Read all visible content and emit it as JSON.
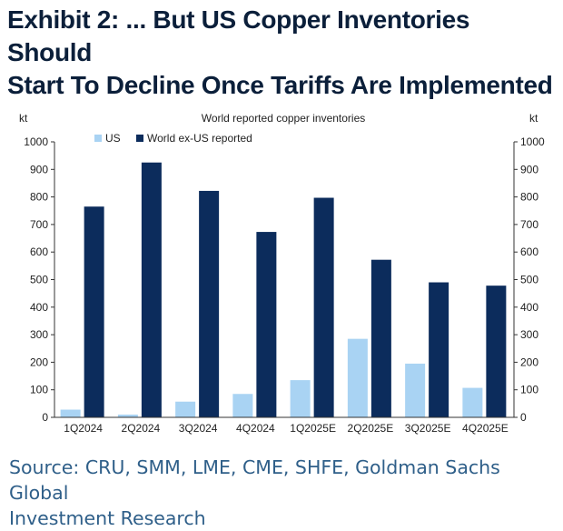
{
  "header": {
    "title_line1": "Exhibit 2: ... But US Copper Inventories Should",
    "title_line2": "Start To Decline Once Tariffs Are Implemented"
  },
  "footer": {
    "source_line1": "Source: CRU, SMM, LME, CME, SHFE, Goldman Sachs Global",
    "source_line2": "Investment Research"
  },
  "chart_data": {
    "type": "bar",
    "title": "World reported copper inventories",
    "ylabel_left": "kt",
    "ylabel_right": "kt",
    "ylim": [
      0,
      1000
    ],
    "yticks": [
      0,
      100,
      200,
      300,
      400,
      500,
      600,
      700,
      800,
      900,
      1000
    ],
    "categories": [
      "1Q2024",
      "2Q2024",
      "3Q2024",
      "4Q2024",
      "1Q2025E",
      "2Q2025E",
      "3Q2025E",
      "4Q2025E"
    ],
    "series": [
      {
        "name": "US",
        "color": "#a9d3f3",
        "values": [
          28,
          10,
          57,
          85,
          135,
          285,
          195,
          107
        ]
      },
      {
        "name": "World ex-US reported",
        "color": "#0c2c5c",
        "values": [
          765,
          925,
          822,
          673,
          797,
          572,
          490,
          478
        ]
      }
    ],
    "legend_position": "top-left",
    "grid": false
  }
}
